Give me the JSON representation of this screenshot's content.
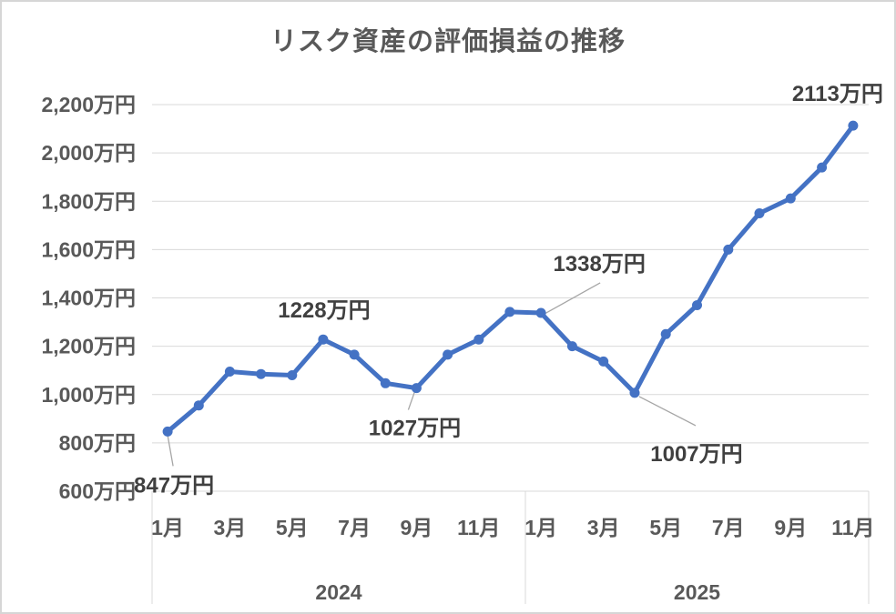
{
  "chart_title": "リスク資産の評価損益の推移",
  "colors": {
    "line": "#4472C4",
    "marker": "#4472C4",
    "gridline": "#D9D9D9",
    "axis_line": "#D9D9D9",
    "axis_text": "#595959",
    "title_text": "#595959",
    "data_label_text": "#404040",
    "leader_line": "#A6A6A6",
    "frame_border": "#D6D6D6",
    "background": "#FFFFFF"
  },
  "chart_data": {
    "type": "line",
    "title": "リスク資産の評価損益の推移",
    "unit": "万円",
    "grid": true,
    "legend_position": "none",
    "ylim": [
      600,
      2200
    ],
    "y_tick_step": 200,
    "y_ticks": [
      {
        "value": 2200,
        "label": "2,200万円"
      },
      {
        "value": 2000,
        "label": "2,000万円"
      },
      {
        "value": 1800,
        "label": "1,800万円"
      },
      {
        "value": 1600,
        "label": "1,600万円"
      },
      {
        "value": 1400,
        "label": "1,400万円"
      },
      {
        "value": 1200,
        "label": "1,200万円"
      },
      {
        "value": 1000,
        "label": "1,000万円"
      },
      {
        "value": 800,
        "label": "800万円"
      },
      {
        "value": 600,
        "label": "600万円"
      }
    ],
    "x_groups": [
      {
        "year": "2024",
        "months_total": 12,
        "tick_labels": [
          "1月",
          "3月",
          "5月",
          "7月",
          "9月",
          "11月"
        ],
        "tick_month_indices": [
          0,
          2,
          4,
          6,
          8,
          10
        ]
      },
      {
        "year": "2025",
        "months_total": 11,
        "tick_labels": [
          "1月",
          "3月",
          "5月",
          "7月",
          "9月",
          "11月"
        ],
        "tick_month_indices": [
          0,
          2,
          4,
          6,
          8,
          10
        ]
      }
    ],
    "series": [
      {
        "values": [
          847,
          955,
          1095,
          1085,
          1080,
          1228,
          1165,
          1047,
          1027,
          1165,
          1228,
          1342,
          1338,
          1200,
          1137,
          1007,
          1250,
          1370,
          1600,
          1750,
          1812,
          1940,
          2113
        ]
      }
    ],
    "data_labels": [
      {
        "point_index": 0,
        "text": "847万円"
      },
      {
        "point_index": 5,
        "text": "1228万円"
      },
      {
        "point_index": 8,
        "text": "1027万円"
      },
      {
        "point_index": 12,
        "text": "1338万円"
      },
      {
        "point_index": 15,
        "text": "1007万円"
      },
      {
        "point_index": 22,
        "text": "2113万円"
      }
    ]
  }
}
